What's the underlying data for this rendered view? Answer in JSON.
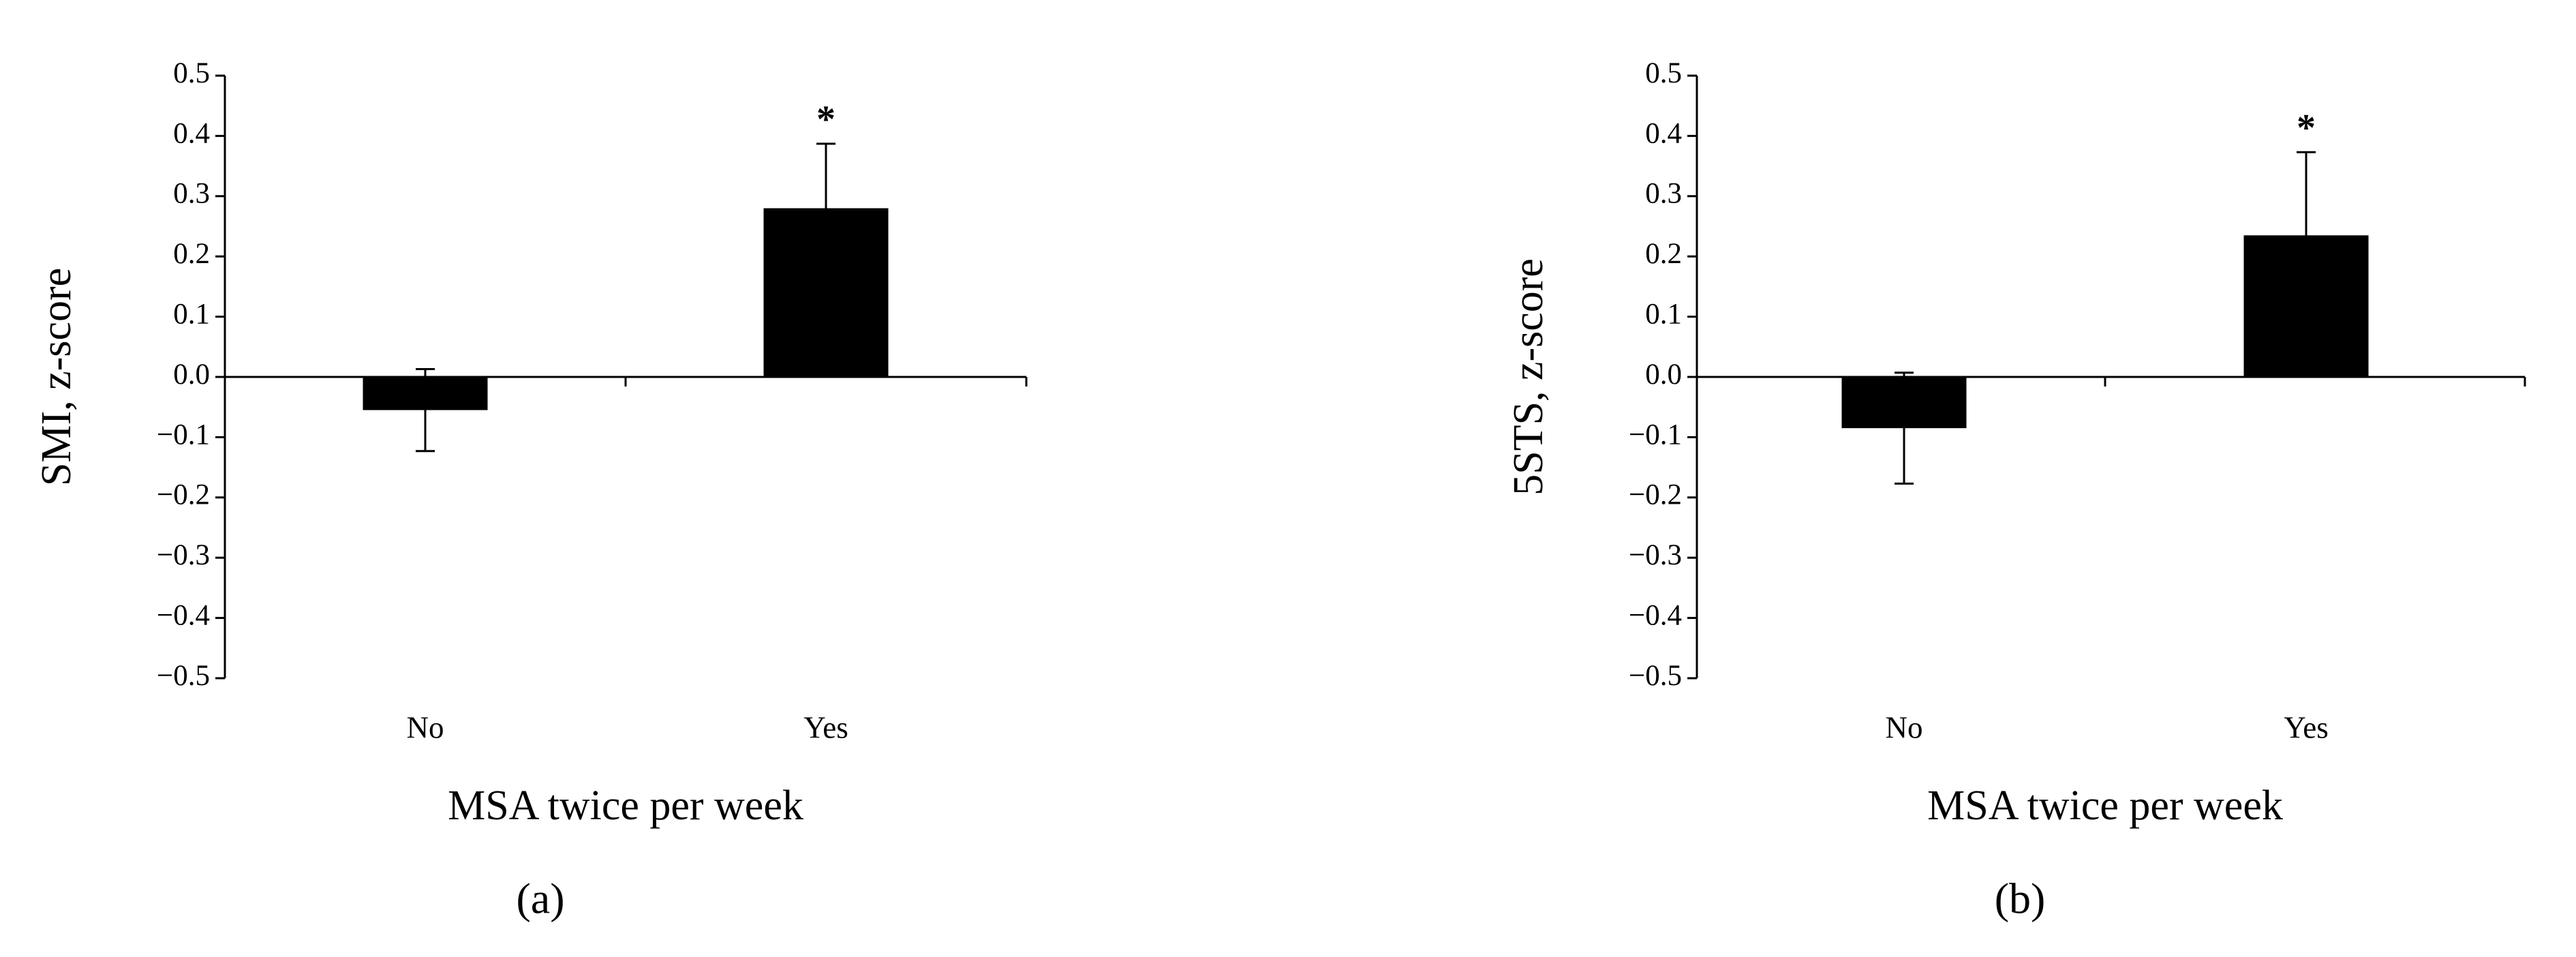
{
  "chart_data": [
    {
      "type": "bar",
      "label": "(a)",
      "x_label": "MSA twice per week",
      "y_label": "SMI, z-score",
      "categories": [
        "No",
        "Yes"
      ],
      "values": [
        -0.055,
        0.28
      ],
      "errors": [
        0.068,
        0.107
      ],
      "color": "#000000",
      "annotations": [
        null,
        "*"
      ],
      "ylim": [
        -0.5,
        0.5
      ],
      "yticks": [
        {
          "value": -0.5,
          "label": "−0.5"
        },
        {
          "value": -0.4,
          "label": "−0.4"
        },
        {
          "value": -0.3,
          "label": "−0.3"
        },
        {
          "value": -0.2,
          "label": "−0.2"
        },
        {
          "value": -0.1,
          "label": "−0.1"
        },
        {
          "value": 0,
          "label": "0.0"
        },
        0.1,
        0.2,
        0.3,
        0.4,
        0.5
      ]
    },
    {
      "type": "bar",
      "label": "(b)",
      "x_label": "MSA twice per week",
      "y_label": "5STS, z-score",
      "categories": [
        "No",
        "Yes"
      ],
      "values": [
        -0.085,
        0.235
      ],
      "errors": [
        0.092,
        0.138
      ],
      "color": "#000000",
      "annotations": [
        null,
        "*"
      ],
      "ylim": [
        -0.5,
        0.5
      ],
      "yticks": [
        {
          "value": -0.5,
          "label": "−0.5"
        },
        {
          "value": -0.4,
          "label": "−0.4"
        },
        {
          "value": -0.3,
          "label": "−0.3"
        },
        {
          "value": -0.2,
          "label": "−0.2"
        },
        {
          "value": -0.1,
          "label": "−0.1"
        },
        {
          "value": 0,
          "label": "0.0"
        },
        0.1,
        0.2,
        0.3,
        0.4,
        0.5
      ]
    }
  ]
}
